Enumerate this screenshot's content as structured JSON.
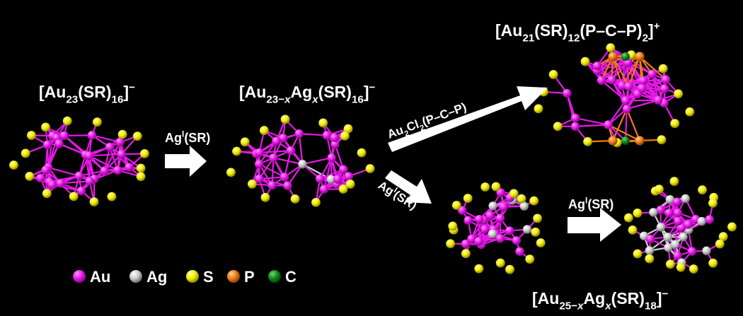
{
  "colors": {
    "background": "#000000",
    "au": "#e817e8",
    "ag": "#c9c9c9",
    "s": "#f2ec00",
    "p": "#f07c12",
    "c": "#0c8a17",
    "arrow": "#ffffff"
  },
  "clusters": {
    "au23": {
      "formula": [
        {
          "t": "[Au"
        },
        {
          "t": "23",
          "sub": true
        },
        {
          "t": "(SR)"
        },
        {
          "t": "16",
          "sub": true
        },
        {
          "t": "]"
        },
        {
          "t": "−",
          "sup": true
        }
      ]
    },
    "au23_x_ag": {
      "formula": [
        {
          "t": "[Au"
        },
        {
          "t": "23−",
          "sub": true
        },
        {
          "t": "x",
          "sub": true,
          "it": true
        },
        {
          "t": "Ag"
        },
        {
          "t": "x",
          "sub": true,
          "it": true
        },
        {
          "t": "(SR)"
        },
        {
          "t": "16",
          "sub": true
        },
        {
          "t": "]"
        },
        {
          "t": "−",
          "sup": true
        }
      ]
    },
    "au21": {
      "formula": [
        {
          "t": "[Au"
        },
        {
          "t": "21",
          "sub": true
        },
        {
          "t": "(SR)"
        },
        {
          "t": "12",
          "sub": true
        },
        {
          "t": "(P–C–P)"
        },
        {
          "t": "2",
          "sub": true
        },
        {
          "t": "]"
        },
        {
          "t": "+",
          "sup": true
        }
      ]
    },
    "au25_x_ag": {
      "formula": [
        {
          "t": "[Au"
        },
        {
          "t": "25−",
          "sub": true
        },
        {
          "t": "x",
          "sub": true,
          "it": true
        },
        {
          "t": "Ag"
        },
        {
          "t": "x",
          "sub": true,
          "it": true
        },
        {
          "t": "(SR)"
        },
        {
          "t": "18",
          "sub": true
        },
        {
          "t": "]"
        },
        {
          "t": "−",
          "sup": true
        }
      ]
    }
  },
  "arrows": {
    "agsr_1": [
      {
        "t": "Ag"
      },
      {
        "t": "I",
        "sup": true
      },
      {
        "t": "(SR)"
      }
    ],
    "au2cl2": [
      {
        "t": "Au"
      },
      {
        "t": "2",
        "sub": true
      },
      {
        "t": "Cl"
      },
      {
        "t": "2",
        "sub": true
      },
      {
        "t": "(P–C–P)"
      }
    ],
    "agsr_2": [
      {
        "t": "Ag"
      },
      {
        "t": "I",
        "sup": true
      },
      {
        "t": "(SR)"
      }
    ],
    "agsr_3": [
      {
        "t": "Ag"
      },
      {
        "t": "I",
        "sup": true
      },
      {
        "t": "(SR)"
      }
    ]
  },
  "legend": [
    {
      "label": "Au",
      "color": "#e817e8"
    },
    {
      "label": "Ag",
      "color": "#c9c9c9"
    },
    {
      "label": "S",
      "color": "#f2ec00"
    },
    {
      "label": "P",
      "color": "#f07c12"
    },
    {
      "label": "C",
      "color": "#0c8a17"
    }
  ]
}
